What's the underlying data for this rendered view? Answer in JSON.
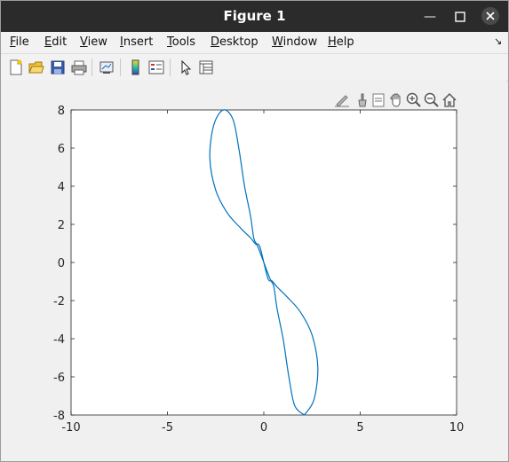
{
  "window": {
    "title": "Figure 1"
  },
  "menu": {
    "items": [
      {
        "key": "F",
        "rest": "ile"
      },
      {
        "key": "E",
        "rest": "dit"
      },
      {
        "key": "V",
        "rest": "iew"
      },
      {
        "key": "I",
        "rest": "nsert"
      },
      {
        "key": "T",
        "rest": "ools"
      },
      {
        "key": "D",
        "rest": "esktop"
      },
      {
        "key": "W",
        "rest": "indow"
      },
      {
        "key": "H",
        "rest": "elp"
      }
    ]
  },
  "toolbar": {
    "icons": [
      "new-figure-icon",
      "open-file-icon",
      "save-icon",
      "print-icon",
      "link-plot-icon",
      "colorbar-icon",
      "legend-icon",
      "pointer-icon",
      "property-inspector-icon"
    ]
  },
  "axes_toolbar": {
    "icons": [
      "edit-plot-icon",
      "brush-icon",
      "data-tips-icon",
      "pan-icon",
      "zoom-in-icon",
      "zoom-out-icon",
      "home-icon"
    ]
  },
  "chart_data": {
    "type": "line",
    "title": "",
    "xlabel": "",
    "ylabel": "",
    "xlim": [
      -10,
      10
    ],
    "ylim": [
      -8,
      8
    ],
    "xticks": [
      -10,
      -5,
      0,
      5,
      10
    ],
    "yticks": [
      -8,
      -6,
      -4,
      -2,
      0,
      2,
      4,
      6,
      8
    ],
    "xtick_labels": [
      "-10",
      "-5",
      "0",
      "5",
      "10"
    ],
    "ytick_labels": [
      "-8",
      "-6",
      "-4",
      "-2",
      "0",
      "2",
      "4",
      "6",
      "8"
    ],
    "grid": false,
    "series": [
      {
        "color": "#0072bd",
        "x": [
          2.1,
          2.6,
          2.8,
          2.5,
          1.9,
          1.2,
          0.7,
          0.5,
          0.45,
          0.4,
          0.2,
          -0.2,
          -0.4,
          -0.45,
          -0.5,
          -0.7,
          -1.2,
          -1.9,
          -2.5,
          -2.8,
          -2.6,
          -2.1,
          -1.6,
          -1.3,
          -1.0,
          -0.7,
          -0.6,
          -0.5,
          -0.3,
          0.3,
          0.5,
          0.6,
          0.7,
          1.0,
          1.3,
          1.6,
          2.1
        ],
        "y": [
          -8,
          -7.2,
          -5.5,
          -3.8,
          -2.6,
          -1.8,
          -1.3,
          -1.05,
          -1.0,
          -0.95,
          -0.8,
          0.8,
          0.95,
          1.0,
          1.05,
          1.3,
          1.8,
          2.6,
          3.8,
          5.5,
          7.2,
          8,
          7.5,
          6.0,
          4.0,
          2.5,
          1.8,
          1.2,
          0.8,
          -0.8,
          -1.2,
          -1.8,
          -2.5,
          -4.0,
          -6.0,
          -7.5,
          -8
        ]
      }
    ]
  }
}
